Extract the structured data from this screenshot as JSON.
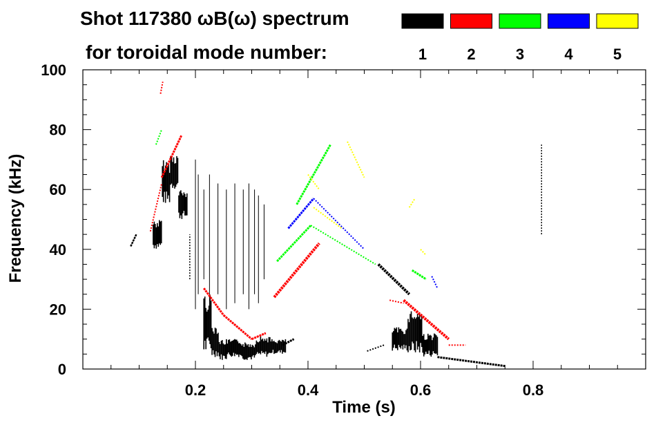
{
  "chart_data": {
    "type": "scatter",
    "title_line1": "Shot 117380 ωB(ω) spectrum",
    "title_line2": "for toroidal mode number:",
    "xlabel": "Time (s)",
    "ylabel": "Frequency (kHz)",
    "xlim": [
      0.0,
      1.0
    ],
    "ylim": [
      0,
      100
    ],
    "x_ticks": [
      "0.2",
      "0.4",
      "0.6",
      "0.8"
    ],
    "x_tick_values": [
      0.2,
      0.4,
      0.6,
      0.8
    ],
    "y_ticks": [
      "0",
      "20",
      "40",
      "60",
      "80",
      "100"
    ],
    "y_tick_values": [
      0,
      20,
      40,
      60,
      80,
      100
    ],
    "legend": [
      {
        "label": "1",
        "color": "#000000"
      },
      {
        "label": "2",
        "color": "#ff0000"
      },
      {
        "label": "3",
        "color": "#00ff00"
      },
      {
        "label": "4",
        "color": "#0000ff"
      },
      {
        "label": "5",
        "color": "#ffff00"
      }
    ],
    "series": [
      {
        "name": "1",
        "color": "#000000",
        "segments": [
          {
            "t": [
              0.085,
              0.095
            ],
            "f": [
              41,
              45
            ],
            "w": 2.5
          },
          {
            "t": [
              0.125,
              0.185
            ],
            "f": [
              [
                40,
                50
              ],
              [
                55,
                70
              ],
              [
                60,
                72
              ],
              [
                50,
                60
              ]
            ],
            "cloud": true
          },
          {
            "t": [
              0.19,
              0.19
            ],
            "f": [
              30,
              45
            ]
          },
          {
            "t": [
              0.215,
              0.255
            ],
            "f": [
              [
                5,
                25
              ],
              [
                4,
                15
              ],
              [
                3,
                10
              ]
            ],
            "cloud": true
          },
          {
            "t": [
              0.255,
              0.36
            ],
            "f": [
              [
                4,
                10
              ],
              [
                3,
                9
              ],
              [
                4,
                11
              ],
              [
                5,
                10
              ]
            ],
            "cloud": true
          },
          {
            "t": [
              0.355,
              0.375
            ],
            "f": [
              8,
              10
            ],
            "w": 3
          },
          {
            "t": [
              0.505,
              0.535
            ],
            "f": [
              6,
              8
            ],
            "w": 2
          },
          {
            "t": [
              0.525,
              0.58
            ],
            "f": [
              35,
              25
            ],
            "w": 4
          },
          {
            "t": [
              0.55,
              0.63
            ],
            "f": [
              [
                6,
                14
              ],
              [
                5,
                20
              ],
              [
                4,
                12
              ]
            ],
            "cloud": true
          },
          {
            "t": [
              0.63,
              0.75
            ],
            "f": [
              4,
              1
            ],
            "w": 3
          },
          {
            "t": [
              0.815,
              0.815
            ],
            "f": [
              45,
              75
            ]
          }
        ],
        "vlines": [
          {
            "t": 0.2,
            "f": [
              20,
              70
            ]
          },
          {
            "t": 0.205,
            "f": [
              25,
              65
            ]
          },
          {
            "t": 0.215,
            "f": [
              30,
              60
            ]
          },
          {
            "t": 0.225,
            "f": [
              20,
              65
            ]
          },
          {
            "t": 0.24,
            "f": [
              25,
              62
            ]
          },
          {
            "t": 0.255,
            "f": [
              20,
              60
            ]
          },
          {
            "t": 0.27,
            "f": [
              22,
              62
            ]
          },
          {
            "t": 0.285,
            "f": [
              25,
              60
            ]
          },
          {
            "t": 0.295,
            "f": [
              20,
              62
            ]
          },
          {
            "t": 0.305,
            "f": [
              25,
              60
            ]
          },
          {
            "t": 0.312,
            "f": [
              22,
              58
            ]
          },
          {
            "t": 0.322,
            "f": [
              30,
              55
            ]
          }
        ]
      },
      {
        "name": "2",
        "color": "#ff0000",
        "segments": [
          {
            "t": [
              0.12,
              0.14
            ],
            "f": [
              46,
              62
            ],
            "w": 2
          },
          {
            "t": [
              0.14,
              0.175
            ],
            "f": [
              64,
              78
            ],
            "w": 3
          },
          {
            "t": [
              0.138,
              0.142
            ],
            "f": [
              92,
              96
            ],
            "w": 2
          },
          {
            "t": [
              0.215,
              0.25
            ],
            "f": [
              27,
              18
            ],
            "w": 3
          },
          {
            "t": [
              0.25,
              0.3
            ],
            "f": [
              18,
              10
            ],
            "w": 3
          },
          {
            "t": [
              0.3,
              0.325
            ],
            "f": [
              10,
              12
            ],
            "w": 3
          },
          {
            "t": [
              0.34,
              0.42
            ],
            "f": [
              24,
              42
            ],
            "w": 4
          },
          {
            "t": [
              0.57,
              0.65
            ],
            "f": [
              23,
              10
            ],
            "w": 4
          },
          {
            "t": [
              0.65,
              0.68
            ],
            "f": [
              8,
              8
            ],
            "w": 2
          },
          {
            "t": [
              0.545,
              0.57
            ],
            "f": [
              23,
              22
            ],
            "w": 2
          }
        ]
      },
      {
        "name": "3",
        "color": "#00ff00",
        "segments": [
          {
            "t": [
              0.13,
              0.14
            ],
            "f": [
              75,
              80
            ],
            "w": 2
          },
          {
            "t": [
              0.345,
              0.405
            ],
            "f": [
              36,
              48
            ],
            "w": 3
          },
          {
            "t": [
              0.38,
              0.44
            ],
            "f": [
              55,
              75
            ],
            "w": 3
          },
          {
            "t": [
              0.405,
              0.52
            ],
            "f": [
              48,
              35
            ],
            "w": 2
          },
          {
            "t": [
              0.585,
              0.61
            ],
            "f": [
              33,
              30
            ],
            "w": 3
          }
        ]
      },
      {
        "name": "4",
        "color": "#0000ff",
        "segments": [
          {
            "t": [
              0.365,
              0.41
            ],
            "f": [
              47,
              57
            ],
            "w": 3
          },
          {
            "t": [
              0.41,
              0.5
            ],
            "f": [
              57,
              40
            ],
            "w": 2
          },
          {
            "t": [
              0.62,
              0.63
            ],
            "f": [
              31,
              27
            ],
            "w": 2
          }
        ]
      },
      {
        "name": "5",
        "color": "#ffff00",
        "segments": [
          {
            "t": [
              0.4,
              0.42
            ],
            "f": [
              65,
              60
            ],
            "w": 2
          },
          {
            "t": [
              0.41,
              0.46
            ],
            "f": [
              54,
              47
            ],
            "w": 2
          },
          {
            "t": [
              0.47,
              0.5
            ],
            "f": [
              76,
              64
            ],
            "w": 2
          },
          {
            "t": [
              0.58,
              0.59
            ],
            "f": [
              54,
              57
            ],
            "w": 2
          },
          {
            "t": [
              0.6,
              0.61
            ],
            "f": [
              40,
              38
            ],
            "w": 2
          }
        ]
      }
    ]
  }
}
